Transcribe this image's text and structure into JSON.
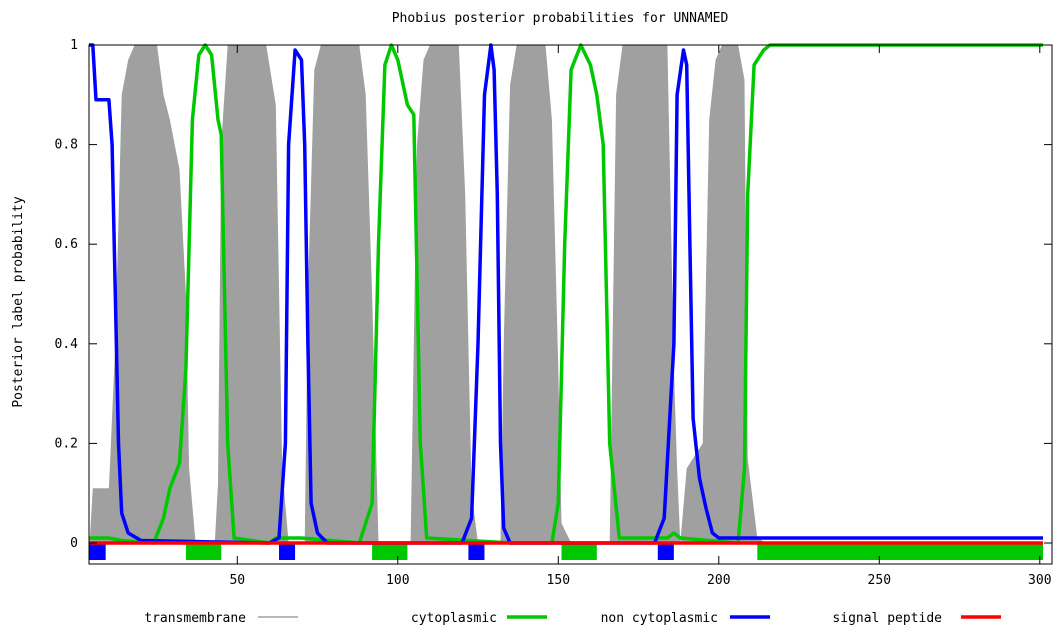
{
  "chart_data": {
    "type": "area",
    "title": "Phobius posterior probabilities for UNNAMED",
    "xlabel": "",
    "ylabel": "Posterior label probability",
    "xlim": [
      1,
      301
    ],
    "ylim": [
      0,
      1
    ],
    "x_ticks": [
      50,
      100,
      150,
      200,
      250,
      300
    ],
    "y_ticks": [
      0,
      0.2,
      0.4,
      0.6,
      0.8,
      1
    ],
    "y_tick_labels": [
      "0",
      "0.2",
      "0.4",
      "0.6",
      "0.8",
      "1"
    ],
    "grid": false,
    "legend_position": "bottom",
    "series": [
      {
        "name": "transmembrane",
        "style": "filled area",
        "color": "#a0a0a0",
        "points": [
          [
            1,
            0
          ],
          [
            4,
            0
          ],
          [
            5,
            0.11
          ],
          [
            10,
            0.11
          ],
          [
            12,
            0.4
          ],
          [
            14,
            0.9
          ],
          [
            16,
            0.97
          ],
          [
            18,
            1
          ],
          [
            25,
            1
          ],
          [
            27,
            0.9
          ],
          [
            29,
            0.85
          ],
          [
            32,
            0.75
          ],
          [
            34,
            0.5
          ],
          [
            35,
            0.15
          ],
          [
            37,
            0
          ],
          [
            43,
            0
          ],
          [
            44,
            0.12
          ],
          [
            45,
            0.8
          ],
          [
            47,
            1
          ],
          [
            59,
            1
          ],
          [
            62,
            0.88
          ],
          [
            64,
            0.15
          ],
          [
            66,
            0
          ],
          [
            71,
            0
          ],
          [
            72,
            0.5
          ],
          [
            74,
            0.95
          ],
          [
            76,
            1
          ],
          [
            88,
            1
          ],
          [
            90,
            0.9
          ],
          [
            92,
            0.5
          ],
          [
            94,
            0
          ],
          [
            104,
            0
          ],
          [
            106,
            0.8
          ],
          [
            108,
            0.97
          ],
          [
            110,
            1
          ],
          [
            119,
            1
          ],
          [
            121,
            0.7
          ],
          [
            123,
            0.1
          ],
          [
            125,
            0
          ],
          [
            132,
            0
          ],
          [
            133,
            0.4
          ],
          [
            135,
            0.92
          ],
          [
            137,
            1
          ],
          [
            146,
            1
          ],
          [
            148,
            0.85
          ],
          [
            150,
            0.35
          ],
          [
            151,
            0.04
          ],
          [
            154,
            0
          ],
          [
            166,
            0
          ],
          [
            168,
            0.9
          ],
          [
            170,
            1
          ],
          [
            184,
            1
          ],
          [
            186,
            0.35
          ],
          [
            187,
            0.15
          ],
          [
            188,
            0
          ],
          [
            190,
            0.15
          ],
          [
            195,
            0.2
          ],
          [
            197,
            0.85
          ],
          [
            199,
            0.97
          ],
          [
            201,
            1
          ],
          [
            206,
            1
          ],
          [
            208,
            0.93
          ],
          [
            209,
            0.17
          ],
          [
            212,
            0.01
          ],
          [
            215,
            0
          ],
          [
            301,
            0
          ]
        ]
      },
      {
        "name": "cytoplasmic",
        "style": "line",
        "color": "#00c800",
        "points": [
          [
            1,
            0.01
          ],
          [
            10,
            0.01
          ],
          [
            14,
            0.005
          ],
          [
            24,
            0
          ],
          [
            27,
            0.05
          ],
          [
            29,
            0.11
          ],
          [
            32,
            0.16
          ],
          [
            34,
            0.35
          ],
          [
            36,
            0.85
          ],
          [
            38,
            0.98
          ],
          [
            40,
            1
          ],
          [
            42,
            0.98
          ],
          [
            44,
            0.85
          ],
          [
            45,
            0.82
          ],
          [
            47,
            0.2
          ],
          [
            49,
            0.01
          ],
          [
            60,
            0
          ],
          [
            62,
            0.01
          ],
          [
            70,
            0.01
          ],
          [
            88,
            0
          ],
          [
            92,
            0.08
          ],
          [
            94,
            0.6
          ],
          [
            96,
            0.96
          ],
          [
            98,
            1
          ],
          [
            100,
            0.97
          ],
          [
            103,
            0.88
          ],
          [
            105,
            0.86
          ],
          [
            107,
            0.2
          ],
          [
            109,
            0.01
          ],
          [
            135,
            0
          ],
          [
            148,
            0
          ],
          [
            150,
            0.08
          ],
          [
            152,
            0.6
          ],
          [
            154,
            0.95
          ],
          [
            157,
            1
          ],
          [
            160,
            0.96
          ],
          [
            162,
            0.9
          ],
          [
            164,
            0.8
          ],
          [
            166,
            0.2
          ],
          [
            169,
            0.01
          ],
          [
            184,
            0.01
          ],
          [
            186,
            0.02
          ],
          [
            188,
            0.01
          ],
          [
            206,
            0
          ],
          [
            208,
            0.15
          ],
          [
            209,
            0.7
          ],
          [
            211,
            0.96
          ],
          [
            214,
            0.99
          ],
          [
            216,
            1
          ],
          [
            301,
            1
          ]
        ]
      },
      {
        "name": "non cytoplasmic",
        "style": "line",
        "color": "#0000ff",
        "points": [
          [
            1,
            1
          ],
          [
            5,
            1
          ],
          [
            6,
            0.89
          ],
          [
            10,
            0.89
          ],
          [
            11,
            0.8
          ],
          [
            12,
            0.5
          ],
          [
            13,
            0.2
          ],
          [
            14,
            0.06
          ],
          [
            16,
            0.02
          ],
          [
            20,
            0.005
          ],
          [
            60,
            0
          ],
          [
            63,
            0.01
          ],
          [
            65,
            0.2
          ],
          [
            66,
            0.8
          ],
          [
            68,
            0.99
          ],
          [
            70,
            0.97
          ],
          [
            71,
            0.8
          ],
          [
            72,
            0.4
          ],
          [
            73,
            0.08
          ],
          [
            75,
            0.02
          ],
          [
            78,
            0
          ],
          [
            120,
            0
          ],
          [
            123,
            0.05
          ],
          [
            125,
            0.4
          ],
          [
            127,
            0.9
          ],
          [
            129,
            1
          ],
          [
            130,
            0.95
          ],
          [
            131,
            0.7
          ],
          [
            132,
            0.2
          ],
          [
            133,
            0.03
          ],
          [
            135,
            0
          ],
          [
            180,
            0
          ],
          [
            183,
            0.05
          ],
          [
            186,
            0.4
          ],
          [
            187,
            0.9
          ],
          [
            189,
            0.99
          ],
          [
            190,
            0.96
          ],
          [
            191,
            0.6
          ],
          [
            192,
            0.25
          ],
          [
            194,
            0.13
          ],
          [
            196,
            0.07
          ],
          [
            198,
            0.02
          ],
          [
            200,
            0.01
          ],
          [
            212,
            0.01
          ],
          [
            301,
            0.01
          ]
        ]
      },
      {
        "name": "signal peptide",
        "style": "line",
        "color": "#ff0000",
        "points": [
          [
            1,
            0
          ],
          [
            301,
            0
          ]
        ]
      }
    ],
    "topology_bar": [
      {
        "label": "non cytoplasmic",
        "color": "#0000ff",
        "start": 1,
        "end": 9
      },
      {
        "label": "cytoplasmic",
        "color": "#00c800",
        "start": 34,
        "end": 45
      },
      {
        "label": "non cytoplasmic",
        "color": "#0000ff",
        "start": 63,
        "end": 68
      },
      {
        "label": "cytoplasmic",
        "color": "#00c800",
        "start": 92,
        "end": 103
      },
      {
        "label": "non cytoplasmic",
        "color": "#0000ff",
        "start": 122,
        "end": 127
      },
      {
        "label": "cytoplasmic",
        "color": "#00c800",
        "start": 151,
        "end": 162
      },
      {
        "label": "non cytoplasmic",
        "color": "#0000ff",
        "start": 181,
        "end": 186
      },
      {
        "label": "cytoplasmic",
        "color": "#00c800",
        "start": 212,
        "end": 301
      }
    ],
    "legend": [
      {
        "label": "transmembrane",
        "color": "#a0a0a0"
      },
      {
        "label": "cytoplasmic",
        "color": "#00c800"
      },
      {
        "label": "non cytoplasmic",
        "color": "#0000ff"
      },
      {
        "label": "signal peptide",
        "color": "#ff0000"
      }
    ]
  }
}
